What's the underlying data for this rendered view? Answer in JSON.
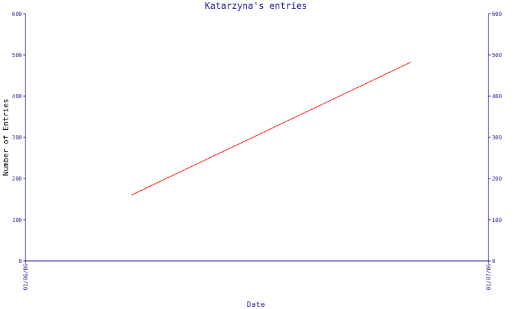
{
  "chart_data": {
    "type": "line",
    "title": "Katarzyna's entries",
    "xlabel": "Date",
    "ylabel": "Number of Entries",
    "x_ticks": [
      "01/06/06",
      "01/07/06"
    ],
    "y_ticks": [
      0,
      100,
      200,
      300,
      400,
      500,
      600
    ],
    "ylim": [
      0,
      600
    ],
    "xlim": [
      "01/06/06",
      "01/07/06"
    ],
    "grid": false,
    "secondary_y_axis": true,
    "series": [
      {
        "color": "#ff0000",
        "points": [
          {
            "x": "01/06/06 05:30",
            "y": 160
          },
          {
            "x": "01/06/06 20:00",
            "y": 483
          }
        ]
      }
    ]
  },
  "colors": {
    "axis": "#000080",
    "text": "#1a1a8c",
    "line": "#ff0000"
  }
}
